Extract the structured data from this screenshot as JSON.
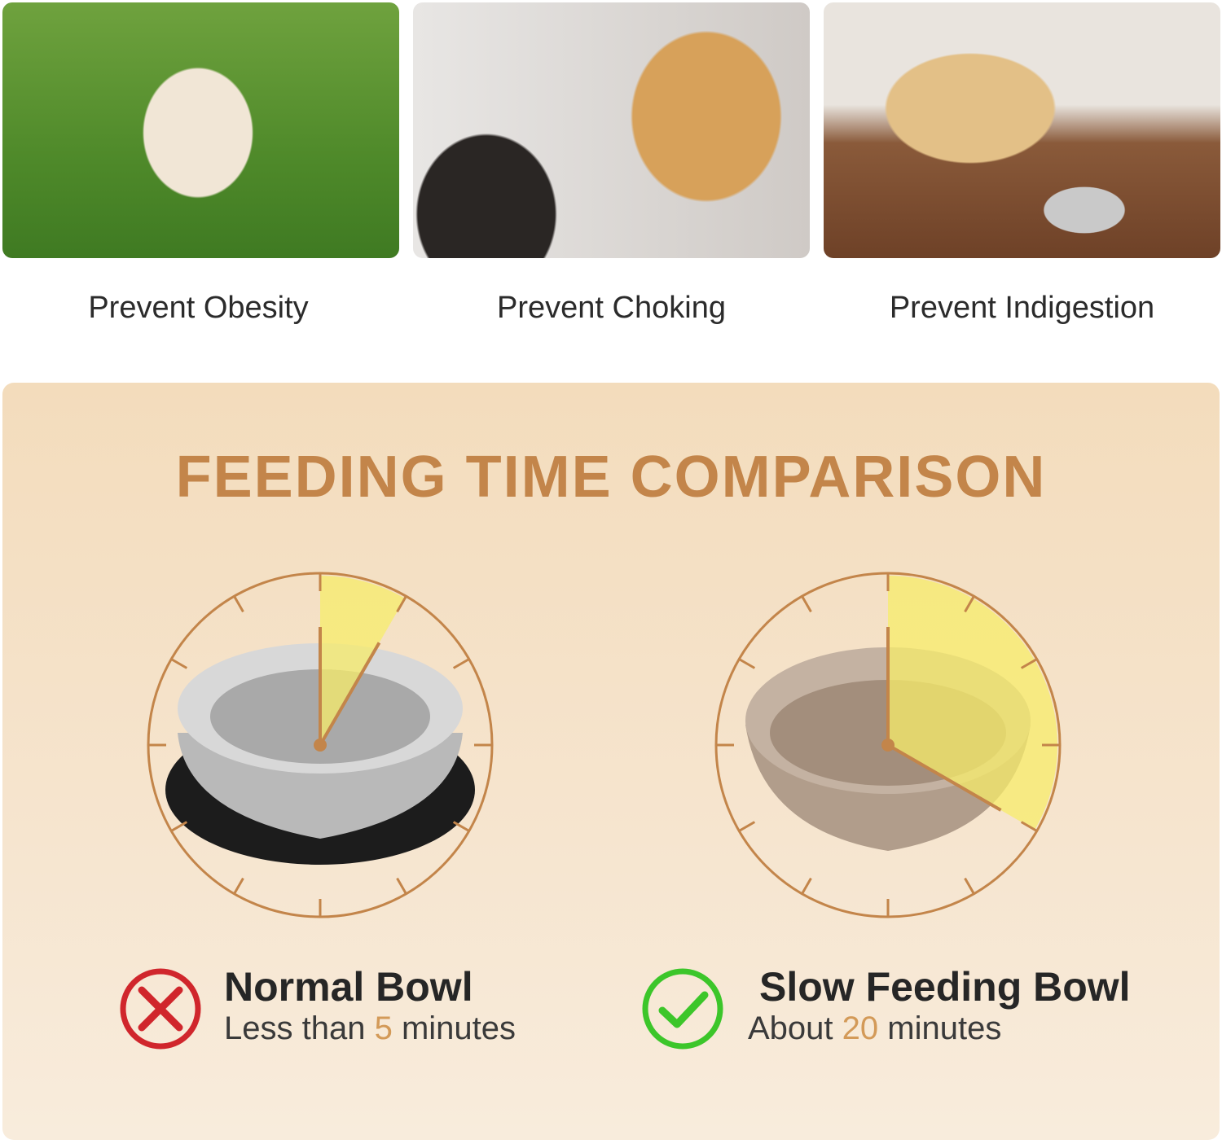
{
  "benefits": [
    {
      "label": "Prevent Obesity",
      "image": "pug-on-grass-photo"
    },
    {
      "label": "Prevent Choking",
      "image": "golden-retriever-mouth-photo"
    },
    {
      "label": "Prevent Indigestion",
      "image": "labrador-with-bowl-photo"
    }
  ],
  "comparison": {
    "title": "FEEDING TIME COMPARISON",
    "normal": {
      "name": "Normal Bowl",
      "prefix": "Less than",
      "value": "5",
      "suffix": "minutes",
      "minutes": 5,
      "icon": "x-circle-icon",
      "icon_color": "#d0262c"
    },
    "slow": {
      "name": "Slow Feeding Bowl",
      "prefix": "About",
      "value": "20",
      "suffix": "minutes",
      "minutes": 20,
      "icon": "check-circle-icon",
      "icon_color": "#3cc62a"
    }
  },
  "colors": {
    "accent": "#c3854a",
    "highlight": "#f7ec6a",
    "panel": "#f3dcbc"
  }
}
